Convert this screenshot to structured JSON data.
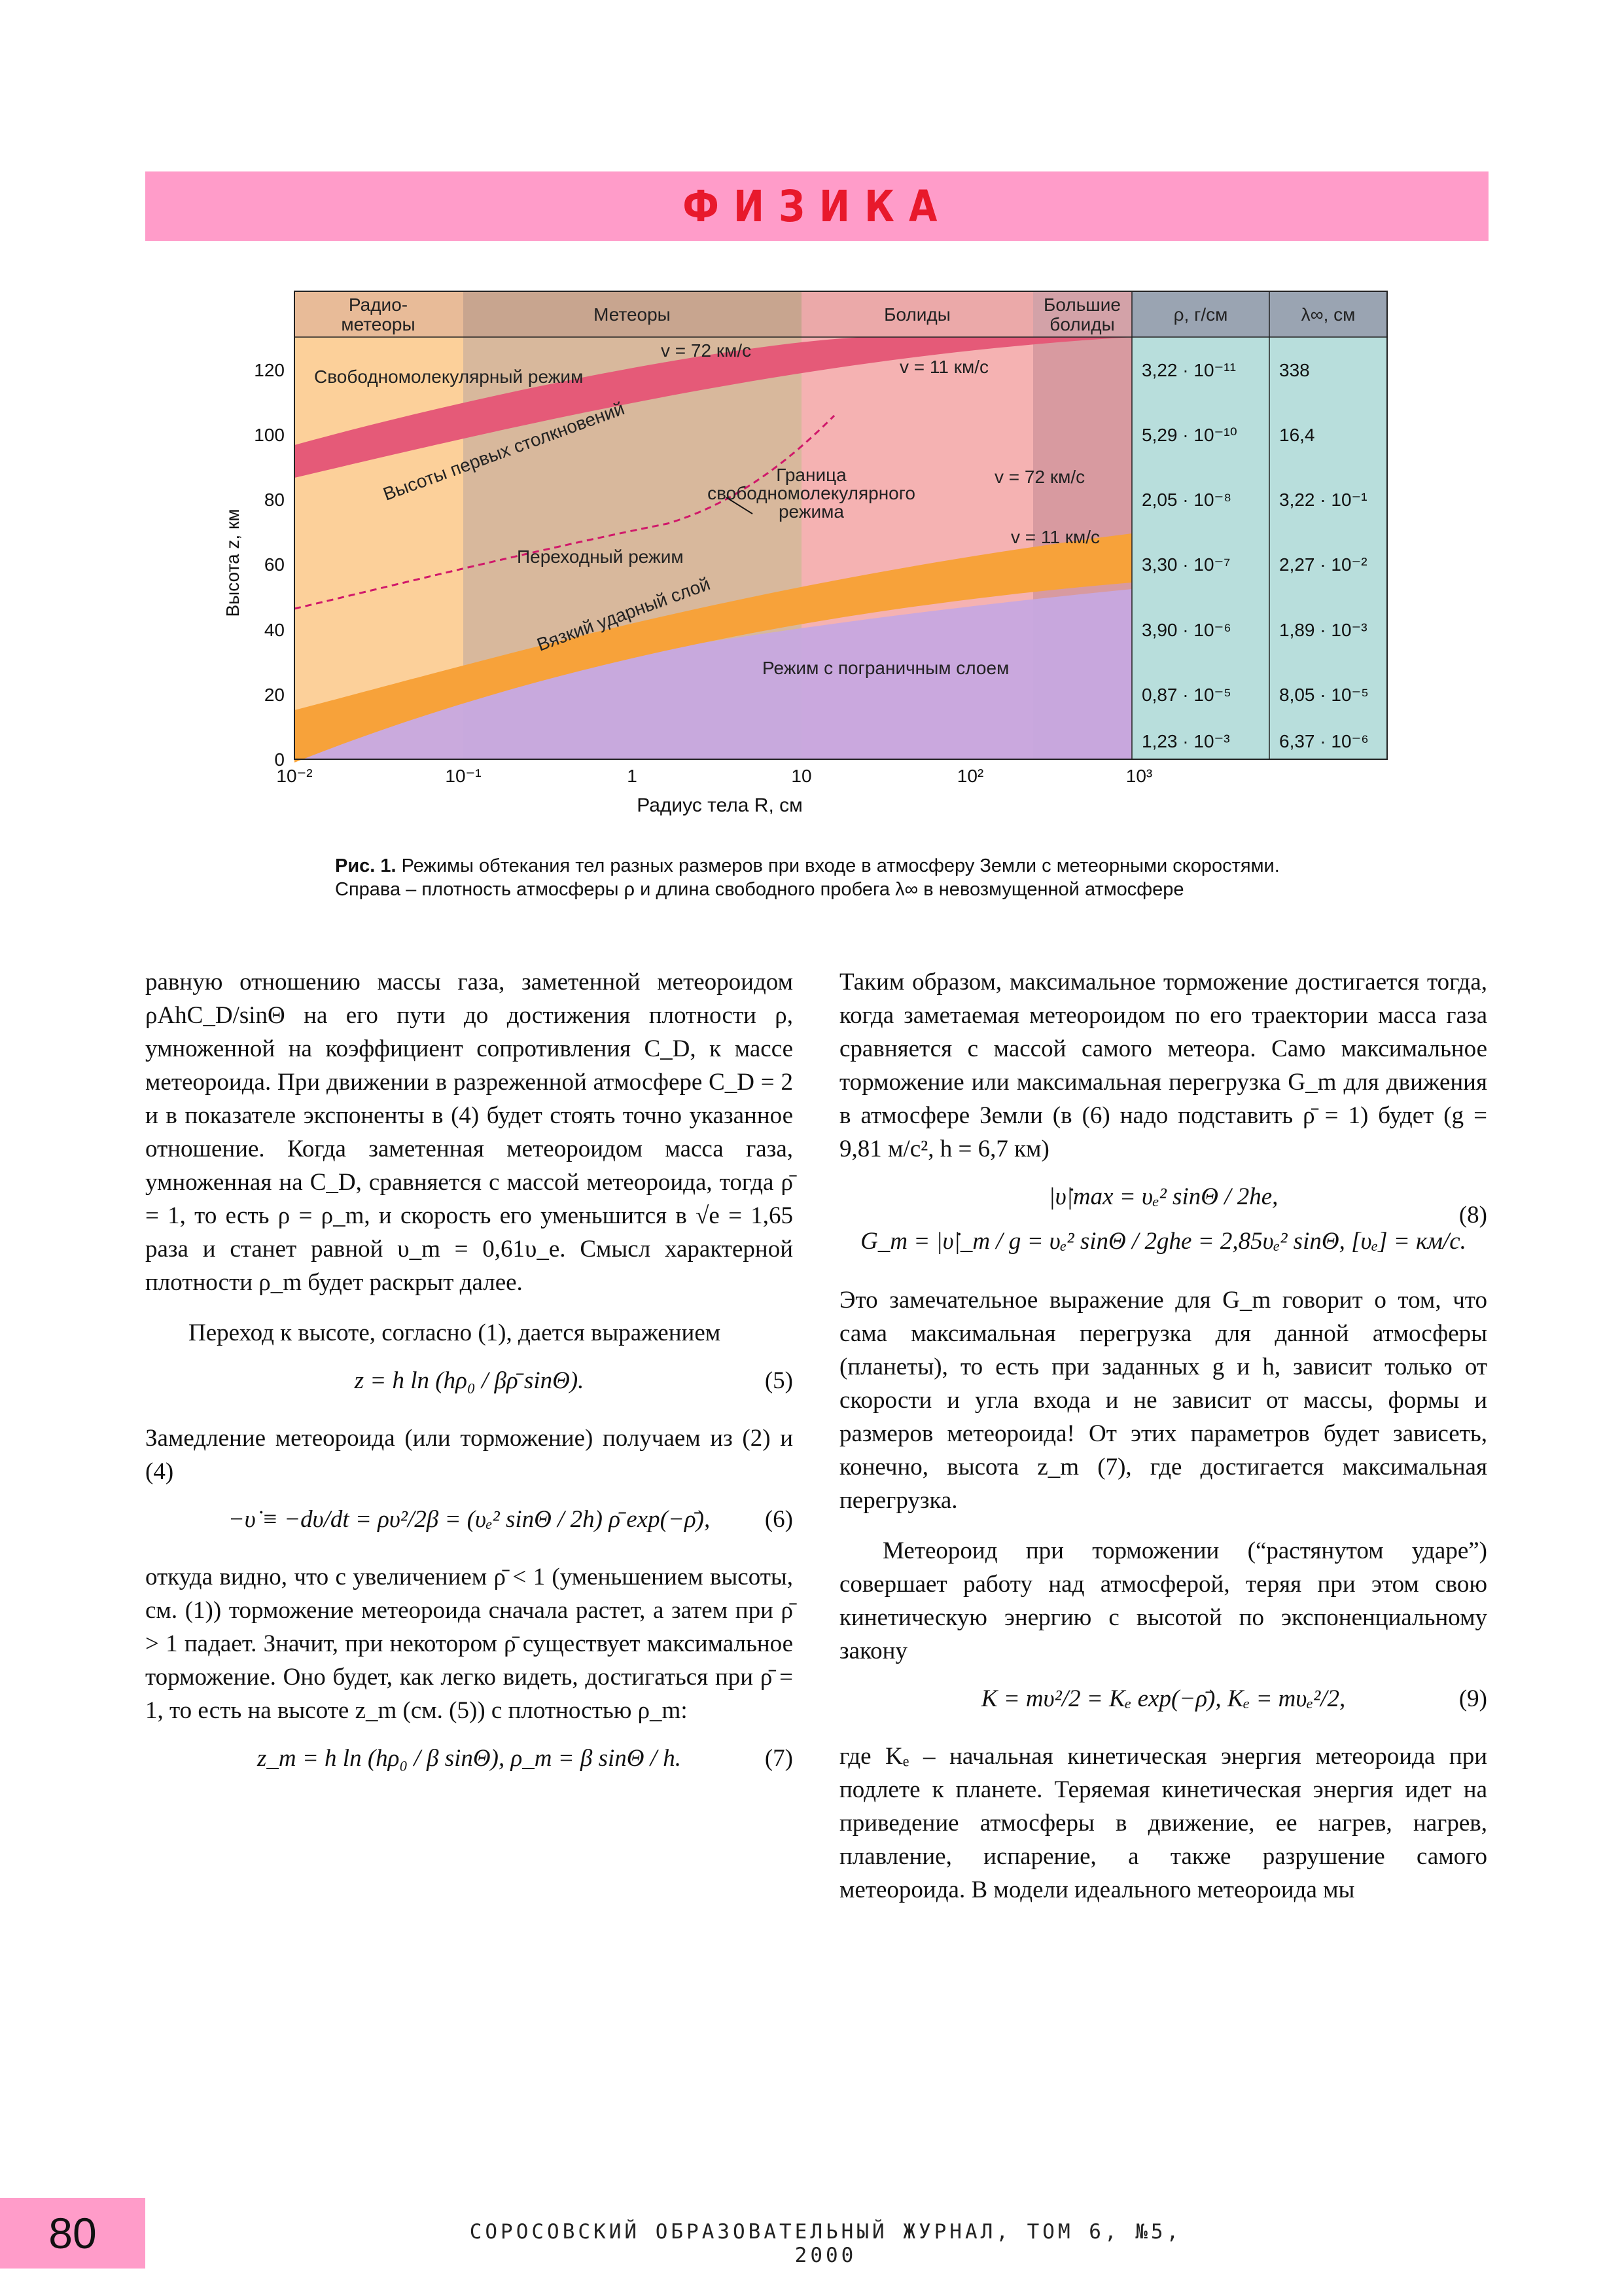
{
  "header": {
    "title": "ФИЗИКА"
  },
  "figure": {
    "column_headers": [
      "Радио-",
      "метеоры",
      "Метеоры",
      "Болиды",
      "Большие",
      "болиды",
      "ρ, г/см",
      "λ∞, см"
    ],
    "y_axis_label": "Высота z, км",
    "x_axis_label": "Радиус тела R, см",
    "y_ticks": [
      "0",
      "20",
      "40",
      "60",
      "80",
      "100",
      "120"
    ],
    "x_ticks": [
      "10⁻²",
      "10⁻¹",
      "1",
      "10",
      "10²",
      "10³"
    ],
    "regime_labels": {
      "free_molecular": "Свободномолекулярный режим",
      "first_collisions": "Высоты первых столкновений",
      "boundary": [
        "Граница",
        "свободномолекулярного",
        "режима"
      ],
      "transitional": "Переходный режим",
      "viscous_shock": "Вязкий ударный слой",
      "boundary_layer": "Режим с пограничным слоем"
    },
    "velocity_labels": [
      "v = 72 км/с",
      "v = 11 км/с",
      "v = 72 км/с",
      "v = 11 км/с"
    ],
    "density_values": [
      "3,22 · 10⁻¹¹",
      "5,29 · 10⁻¹⁰",
      "2,05 · 10⁻⁸",
      "3,30 · 10⁻⁷",
      "3,90 · 10⁻⁶",
      "0,87 · 10⁻⁵",
      "1,23 · 10⁻³"
    ],
    "mean_free_path_values": [
      "338",
      "16,4",
      "3,22 · 10⁻¹",
      "2,27 · 10⁻²",
      "1,89 · 10⁻³",
      "8,05 · 10⁻⁵",
      "6,37 · 10⁻⁶"
    ],
    "colors": {
      "radio": "#fcd09a",
      "meteors": "#d8b89c",
      "bolides": "#f5b2b2",
      "large_bolides": "#d89aa0",
      "table": "#b8dedc",
      "header": "#9aa4b2",
      "first_collision_band": "#e55a78",
      "shock_band": "#f7a23a",
      "boundary_layer": "#c7a8e0"
    }
  },
  "caption": {
    "label": "Рис. 1.",
    "text": "Режимы обтекания тел разных размеров при входе в атмосферу Земли с метеорными скоростями. Справа – плотность атмосферы ρ и длина свободного пробега λ∞ в невозмущенной атмосфере"
  },
  "left_column": {
    "p1": "равную отношению массы газа, заметенной метеороидом ρAhC_D/sinΘ на его пути до достижения плотности ρ, умноженной на коэффициент сопротивления C_D, к массе метеороида. При движении в разреженной атмосфере C_D = 2 и в показателе экспоненты в (4) будет стоять точно указанное отношение. Когда заметенная метеороидом масса газа, умноженная на C_D, сравняется с массой метеороида, тогда ρ̄ = 1, то есть ρ = ρ_m, и скорость его уменьшится в √e = 1,65 раза и станет равной υ_m = 0,61υ_e. Смысл характерной плотности ρ_m будет раскрыт далее.",
    "p2": "Переход к высоте, согласно (1), дается выражением",
    "eq5": "z = h ln (hρ₀ / βρ̄ sinΘ).",
    "eq5_num": "(5)",
    "p3": "Замедление метеороида (или торможение) получаем из (2) и (4)",
    "eq6": "−υ̇ ≡ −dυ/dt = ρυ²/2β = (υₑ² sinΘ / 2h) ρ̄ exp(−ρ̄),",
    "eq6_num": "(6)",
    "p4": "откуда видно, что с увеличением ρ̄ < 1 (уменьшением высоты, см. (1)) торможение метеороида сначала растет, а затем при ρ̄ > 1 падает. Значит, при некотором ρ̄ существует максимальное торможение. Оно будет, как легко видеть, достигаться при ρ̄ = 1, то есть на высоте z_m (см. (5)) с плотностью ρ_m:",
    "eq7": "z_m = h ln (hρ₀ / β sinΘ),      ρ_m = β sinΘ / h.",
    "eq7_num": "(7)"
  },
  "right_column": {
    "p1": "Таким образом, максимальное торможение достигается тогда, когда заметаемая метеороидом по его траектории масса газа сравняется с массой самого метеора. Само максимальное торможение или максимальная перегрузка G_m для движения в атмосфере Земли (в (6) надо подставить ρ̄ = 1) будет (g = 9,81 м/с², h = 6,7 км)",
    "eq8a": "|υ̇|max = υₑ² sinΘ / 2he,",
    "eq8b": "G_m = |υ̇|_m / g = υₑ² sinΘ / 2ghe = 2,85υₑ² sinΘ,      [υₑ] = км/с.",
    "eq8_num": "(8)",
    "p2": "Это замечательное выражение для G_m говорит о том, что сама максимальная перегрузка для данной атмосферы (планеты), то есть при заданных g и h, зависит только от скорости и угла входа и не зависит от массы, формы и размеров метеороида! От этих параметров будет зависеть, конечно, высота z_m (7), где достигается максимальная перегрузка.",
    "p3": "Метеороид при торможении (“растянутом ударе”) совершает работу над атмосферой, теряя при этом свою кинетическую энергию с высотой по экспоненциальному закону",
    "eq9": "K = mυ²/2 = Kₑ exp(−ρ̄),      Kₑ = mυₑ²/2,",
    "eq9_num": "(9)",
    "p4": "где Kₑ – начальная кинетическая энергия метеороида при подлете к планете. Теряемая кинетическая энергия идет на приведение атмосферы в движение, ее нагрев, нагрев, плавление, испарение, а также разрушение самого метеороида. В модели идеального метеороида мы"
  },
  "footer": {
    "page_number": "80",
    "journal": "СОРОСОВСКИЙ ОБРАЗОВАТЕЛЬНЫЙ ЖУРНАЛ, ТОМ 6, №5, 2000"
  }
}
